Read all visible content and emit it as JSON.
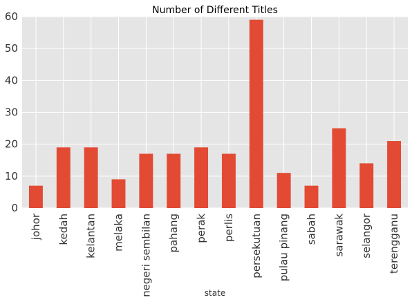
{
  "chart_data": {
    "type": "bar",
    "title": "Number of Different Titles",
    "xlabel": "state",
    "ylabel": "",
    "categories": [
      "johor",
      "kedah",
      "kelantan",
      "melaka",
      "negeri sembilan",
      "pahang",
      "perak",
      "perlis",
      "persekutuan",
      "pulau pinang",
      "sabah",
      "sarawak",
      "selangor",
      "terengganu"
    ],
    "values": [
      7,
      19,
      19,
      9,
      17,
      17,
      19,
      17,
      59,
      11,
      7,
      25,
      14,
      21
    ],
    "ylim": [
      0,
      60
    ],
    "yticks": [
      0,
      10,
      20,
      30,
      40,
      50,
      60
    ],
    "grid": true,
    "legend": "none",
    "colors": {
      "bar": "#e24a33",
      "plot_bg": "#e5e5e5",
      "grid": "#ffffff"
    }
  }
}
